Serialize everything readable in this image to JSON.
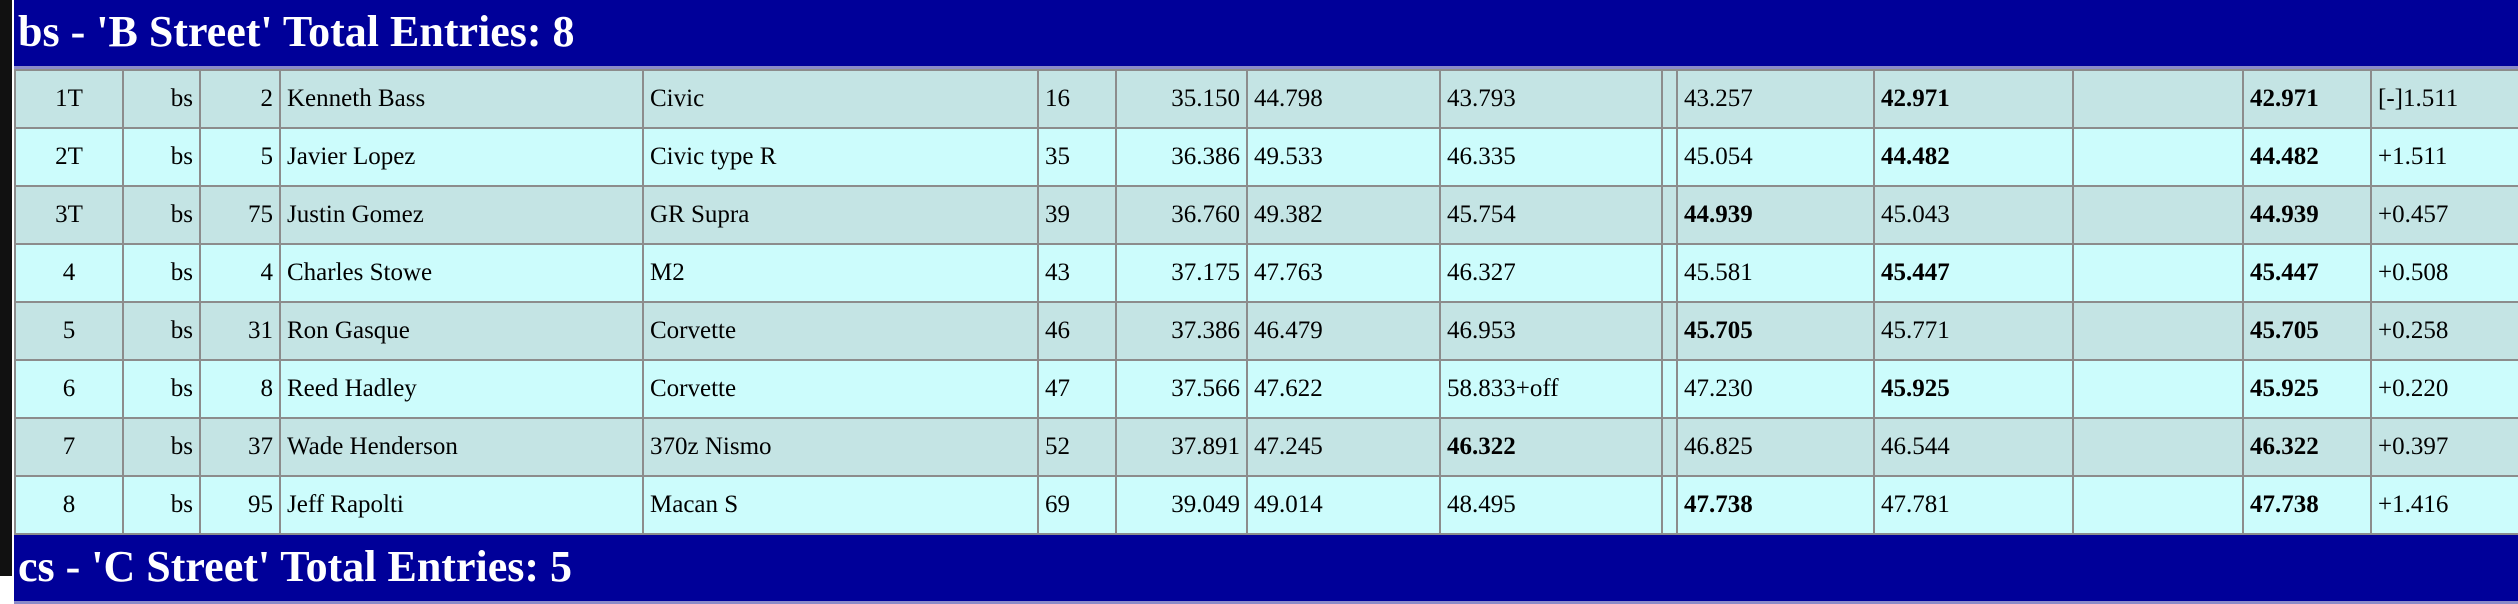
{
  "classes": [
    {
      "header": "bs - 'B Street' Total Entries: 8",
      "rows": [
        {
          "cells": [
            "1T",
            "bs",
            "2",
            "Kenneth Bass",
            "Civic",
            "16",
            "35.150",
            "44.798",
            "43.793",
            "",
            "43.257",
            "42.971",
            "",
            "42.971",
            "[-]1.511"
          ],
          "bold": [
            11,
            13
          ]
        },
        {
          "cells": [
            "2T",
            "bs",
            "5",
            "Javier Lopez",
            "Civic type R",
            "35",
            "36.386",
            "49.533",
            "46.335",
            "",
            "45.054",
            "44.482",
            "",
            "44.482",
            "+1.511"
          ],
          "bold": [
            11,
            13
          ]
        },
        {
          "cells": [
            "3T",
            "bs",
            "75",
            "Justin Gomez",
            "GR Supra",
            "39",
            "36.760",
            "49.382",
            "45.754",
            "",
            "44.939",
            "45.043",
            "",
            "44.939",
            "+0.457"
          ],
          "bold": [
            10,
            13
          ]
        },
        {
          "cells": [
            "4",
            "bs",
            "4",
            "Charles Stowe",
            "M2",
            "43",
            "37.175",
            "47.763",
            "46.327",
            "",
            "45.581",
            "45.447",
            "",
            "45.447",
            "+0.508"
          ],
          "bold": [
            11,
            13
          ]
        },
        {
          "cells": [
            "5",
            "bs",
            "31",
            "Ron Gasque",
            "Corvette",
            "46",
            "37.386",
            "46.479",
            "46.953",
            "",
            "45.705",
            "45.771",
            "",
            "45.705",
            "+0.258"
          ],
          "bold": [
            10,
            13
          ]
        },
        {
          "cells": [
            "6",
            "bs",
            "8",
            "Reed Hadley",
            "Corvette",
            "47",
            "37.566",
            "47.622",
            "58.833+off",
            "",
            "47.230",
            "45.925",
            "",
            "45.925",
            "+0.220"
          ],
          "bold": [
            11,
            13
          ]
        },
        {
          "cells": [
            "7",
            "bs",
            "37",
            "Wade Henderson",
            "370z Nismo",
            "52",
            "37.891",
            "47.245",
            "46.322",
            "",
            "46.825",
            "46.544",
            "",
            "46.322",
            "+0.397"
          ],
          "bold": [
            8,
            13
          ]
        },
        {
          "cells": [
            "8",
            "bs",
            "95",
            "Jeff Rapolti",
            "Macan S",
            "69",
            "39.049",
            "49.014",
            "48.495",
            "",
            "47.738",
            "47.781",
            "",
            "47.738",
            "+1.416"
          ],
          "bold": [
            10,
            13
          ]
        }
      ]
    },
    {
      "header": "cs - 'C Street' Total Entries: 5",
      "rows": []
    }
  ],
  "colors": {
    "header_bg": "#000099",
    "row_odd": "#c4e4e4",
    "row_even": "#ccfcfc"
  }
}
